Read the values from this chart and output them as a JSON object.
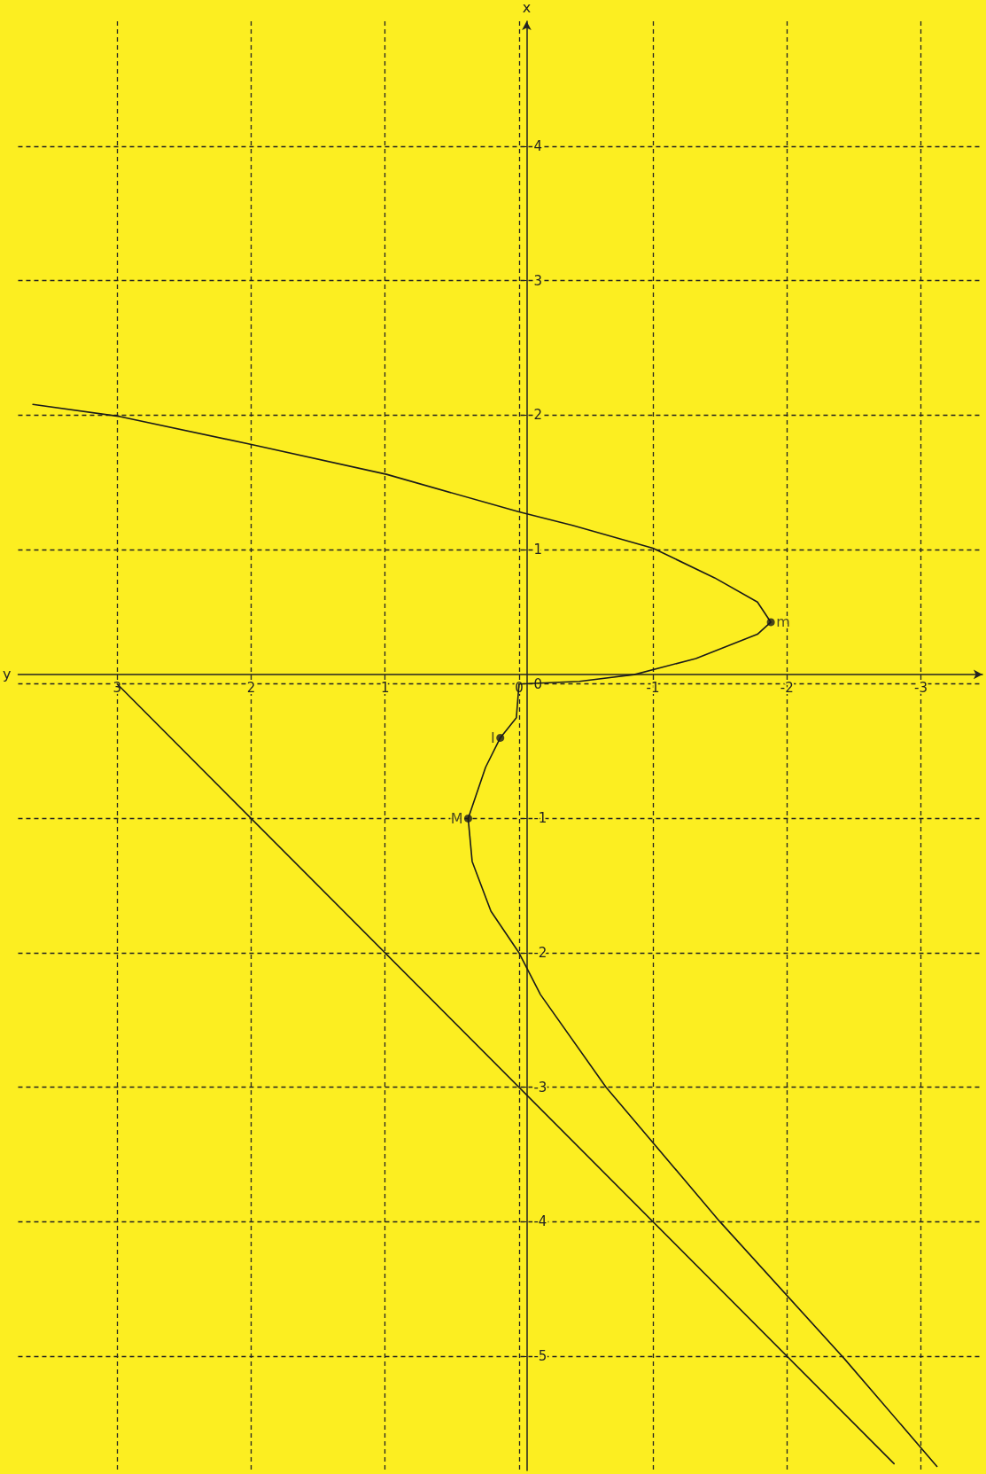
{
  "chart_data": {
    "type": "line",
    "xlabel": "y",
    "ylabel": "x",
    "xlim": [
      3.74,
      -3.46
    ],
    "ylim": [
      -5.85,
      4.93
    ],
    "xticks": [
      3,
      2,
      1,
      0,
      -1,
      -2,
      -3
    ],
    "yticks": [
      -5,
      -4,
      -3,
      -2,
      -1,
      0,
      1,
      2,
      3,
      4
    ],
    "grid": true,
    "marker": "none",
    "line_style": "solid",
    "series": [
      {
        "color": "#1a1a1a",
        "x": [
          0,
          -0.45,
          -0.86,
          -1.32,
          -1.78,
          -1.88,
          -1.78,
          -1.46,
          -1.0,
          -0.4,
          0,
          0.99,
          1.99,
          2.98,
          3.63
        ],
        "values": [
          0,
          0.02,
          0.07,
          0.19,
          0.37,
          0.46,
          0.61,
          0.79,
          1.01,
          1.18,
          1.28,
          1.56,
          1.78,
          1.99,
          2.08
        ]
      },
      {
        "color": "#1a1a1a",
        "x": [
          0,
          0.02,
          0.14,
          0.25,
          0.38,
          0.35,
          0.21,
          0,
          -0.16,
          -0.65,
          -1.5,
          -2.43,
          -3.12
        ],
        "values": [
          0,
          -0.25,
          -0.4,
          -0.62,
          -1.0,
          -1.32,
          -1.69,
          -2.0,
          -2.31,
          -3.0,
          -4.0,
          -5.02,
          -5.82
        ]
      },
      {
        "color": "#1a1a1a",
        "x": [
          3,
          -2.8
        ],
        "values": [
          0,
          -5.8
        ]
      },
      {
        "type": "scatter",
        "marker": "circle",
        "color": "#1a1a1a",
        "x": [
          -1.88,
          0.38,
          0.14
        ],
        "values": [
          0.46,
          -1.0,
          -0.4
        ]
      }
    ],
    "annotations": [
      {
        "text": "m",
        "x": -1.88,
        "y": 0.46
      },
      {
        "text": "M",
        "x": 0.38,
        "y": -1.0
      },
      {
        "text": "I",
        "x": 0.14,
        "y": -0.4
      }
    ]
  }
}
